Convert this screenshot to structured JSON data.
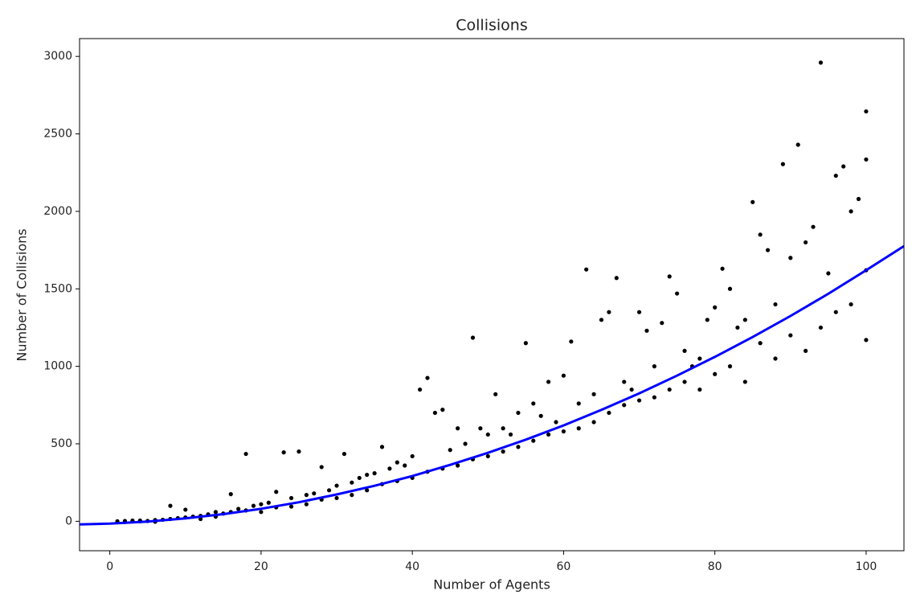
{
  "chart_data": {
    "type": "scatter",
    "title": "Collisions",
    "xlabel": "Number of Agents",
    "ylabel": "Number of Collisions",
    "xlim": [
      -4,
      105
    ],
    "ylim": [
      -190,
      3115
    ],
    "xticks": [
      0,
      20,
      40,
      60,
      80,
      100
    ],
    "yticks": [
      0,
      500,
      1000,
      1500,
      2000,
      2500,
      3000
    ],
    "points": {
      "color": "#000000",
      "x": [
        1,
        2,
        2,
        3,
        4,
        4,
        5,
        6,
        6,
        7,
        8,
        8,
        9,
        10,
        10,
        11,
        12,
        12,
        13,
        14,
        14,
        15,
        16,
        16,
        17,
        18,
        18,
        19,
        20,
        20,
        21,
        22,
        22,
        23,
        24,
        24,
        25,
        26,
        26,
        27,
        28,
        28,
        29,
        30,
        30,
        31,
        32,
        32,
        33,
        34,
        34,
        35,
        36,
        36,
        37,
        38,
        38,
        39,
        40,
        40,
        41,
        42,
        42,
        43,
        44,
        44,
        45,
        46,
        46,
        47,
        48,
        48,
        49,
        50,
        50,
        51,
        52,
        52,
        53,
        54,
        54,
        55,
        56,
        56,
        57,
        58,
        58,
        59,
        60,
        60,
        61,
        62,
        62,
        63,
        64,
        64,
        65,
        66,
        66,
        67,
        68,
        68,
        69,
        70,
        70,
        71,
        72,
        72,
        73,
        74,
        74,
        75,
        76,
        76,
        77,
        78,
        78,
        79,
        80,
        80,
        81,
        82,
        82,
        83,
        84,
        84,
        85,
        86,
        86,
        87,
        88,
        88,
        89,
        90,
        90,
        91,
        92,
        92,
        93,
        94,
        94,
        95,
        96,
        96,
        97,
        98,
        98,
        99,
        100,
        100,
        100,
        100
      ],
      "y": [
        0,
        2,
        -5,
        5,
        5,
        0,
        2,
        8,
        -3,
        10,
        100,
        15,
        20,
        75,
        25,
        30,
        35,
        15,
        45,
        60,
        30,
        50,
        175,
        60,
        80,
        435,
        70,
        100,
        110,
        60,
        120,
        190,
        90,
        445,
        150,
        95,
        450,
        170,
        110,
        180,
        350,
        140,
        200,
        230,
        150,
        435,
        250,
        170,
        280,
        300,
        200,
        310,
        480,
        240,
        340,
        380,
        260,
        360,
        420,
        280,
        850,
        925,
        320,
        700,
        720,
        340,
        460,
        600,
        360,
        500,
        1185,
        400,
        600,
        560,
        420,
        820,
        600,
        450,
        560,
        700,
        480,
        1150,
        760,
        520,
        680,
        900,
        560,
        640,
        940,
        580,
        1160,
        760,
        600,
        1625,
        820,
        640,
        1300,
        1350,
        700,
        1570,
        900,
        750,
        850,
        1350,
        780,
        1230,
        1000,
        800,
        1280,
        1580,
        850,
        1470,
        1100,
        900,
        1000,
        1050,
        850,
        1300,
        1380,
        950,
        1630,
        1500,
        1000,
        1250,
        1300,
        900,
        2060,
        1850,
        1150,
        1750,
        1400,
        1050,
        2305,
        1700,
        1200,
        2430,
        1800,
        1100,
        1900,
        2960,
        1250,
        1600,
        2230,
        1350,
        2290,
        2000,
        1400,
        2080,
        2645,
        2335,
        1620,
        1170
      ]
    },
    "fit": {
      "color": "#0000ff",
      "x": [
        -4,
        0,
        5,
        10,
        15,
        20,
        25,
        30,
        35,
        40,
        45,
        50,
        55,
        60,
        65,
        70,
        75,
        80,
        85,
        90,
        95,
        100,
        105
      ],
      "y": [
        -20,
        -15,
        -2,
        19,
        46,
        81,
        123,
        173,
        229,
        292,
        364,
        442,
        527,
        619,
        719,
        826,
        940,
        1061,
        1189,
        1325,
        1468,
        1620,
        1776
      ]
    }
  }
}
